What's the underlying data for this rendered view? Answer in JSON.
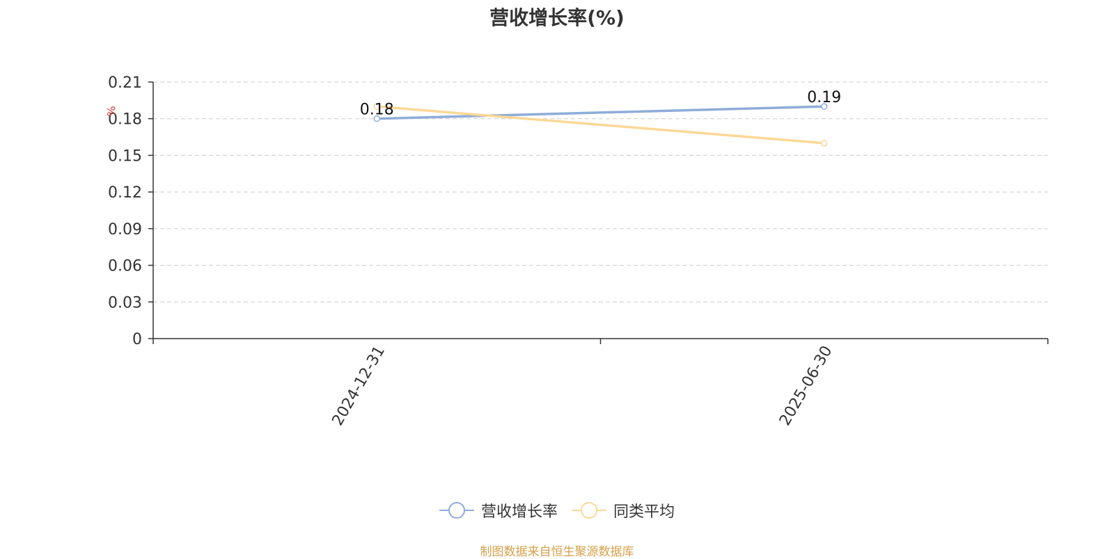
{
  "chart_data": {
    "type": "line",
    "title": "营收增长率(%)",
    "ylabel": "%",
    "x": [
      "2024-12-31",
      "2025-06-30"
    ],
    "ylim": [
      0,
      0.21
    ],
    "yticks": [
      "0",
      "0.03",
      "0.06",
      "0.09",
      "0.12",
      "0.15",
      "0.18",
      "0.21"
    ],
    "grid": true,
    "legend_position": "bottom",
    "series": [
      {
        "name": "营收增长率",
        "values": [
          0.18,
          0.19
        ],
        "color": "#8eacd9",
        "data_labels": [
          "0.18",
          "0.19"
        ]
      },
      {
        "name": "同类平均",
        "values": [
          0.19,
          0.16
        ],
        "color": "#fad896"
      }
    ]
  },
  "source_note": "制图数据来自恒生聚源数据库",
  "colors": {
    "source_note": "#d4a04a",
    "ylabel": "#e03a3a",
    "axis": "#333333",
    "grid": "#cccccc"
  }
}
